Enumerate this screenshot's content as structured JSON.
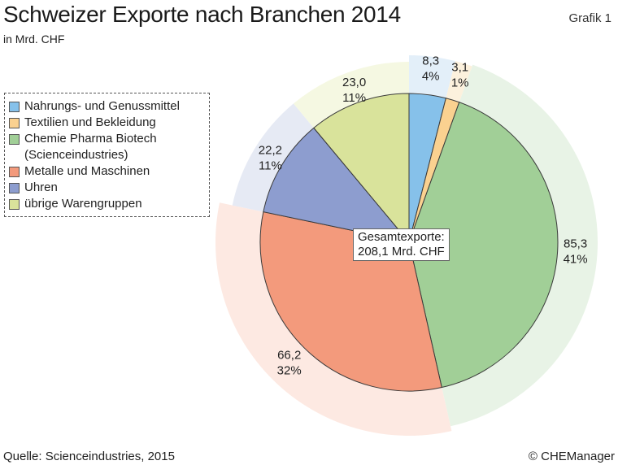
{
  "header": {
    "title": "Schweizer Exporte nach Branchen 2014",
    "subtitle": "in Mrd. CHF",
    "grafik": "Grafik 1"
  },
  "footer": {
    "source": "Quelle: Scienceindustries, 2015",
    "copyright": "© CHEManager"
  },
  "chart_data": {
    "type": "pie",
    "title": "Schweizer Exporte nach Branchen 2014",
    "unit": "in Mrd. CHF",
    "total_label": "Gesamtexporte:",
    "total_value": "208,1 Mrd. CHF",
    "categories": [
      "Nahrungs- und Genussmittel",
      "Textilien und Bekleidung",
      "Chemie Pharma Biotech\n(Scienceindustries)",
      "Metalle und Maschinen",
      "Uhren",
      "übrige Warengruppen"
    ],
    "values": [
      8.3,
      3.1,
      85.3,
      66.2,
      22.2,
      23.0
    ],
    "value_labels": [
      "8,3",
      "3,1",
      "85,3",
      "66,2",
      "22,2",
      "23,0"
    ],
    "percent_labels": [
      "4%",
      "1%",
      "41%",
      "32%",
      "11%",
      "11%"
    ],
    "colors": [
      "#86c1ea",
      "#fad190",
      "#a1cf97",
      "#f39a7c",
      "#8d9dcf",
      "#d9e39b"
    ],
    "halo_colors": [
      "#e3eff9",
      "#fcf1dd",
      "#e8f3e6",
      "#fde9e2",
      "#e6eaf4",
      "#f5f8e2"
    ],
    "legend_position": "left"
  }
}
